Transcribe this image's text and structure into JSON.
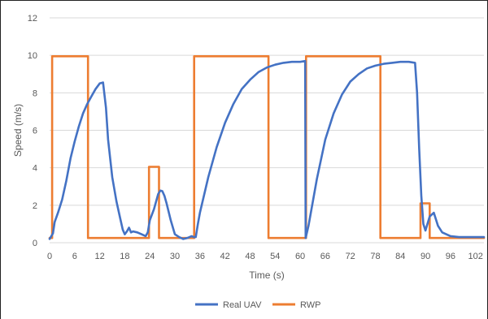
{
  "chart_data": {
    "type": "line",
    "title": "",
    "xlabel": "Time (s)",
    "ylabel": "Speed (m/s)",
    "xlim": [
      0,
      104
    ],
    "ylim": [
      0,
      12
    ],
    "x_ticks": [
      0,
      6,
      12,
      18,
      24,
      30,
      36,
      42,
      48,
      54,
      60,
      66,
      72,
      78,
      84,
      90,
      96,
      102
    ],
    "y_ticks": [
      0,
      2,
      4,
      6,
      8,
      10,
      12
    ],
    "grid": "horizontal",
    "legend": "bottom-center",
    "series": [
      {
        "name": "Real UAV",
        "color": "#4472C4",
        "x": [
          0,
          0.8,
          1.2,
          2,
          3,
          4,
          5,
          6,
          7,
          8,
          9,
          10,
          11,
          12,
          12.8,
          13.5,
          14,
          15,
          16,
          17,
          17.5,
          18,
          18.5,
          19,
          19.5,
          20,
          21,
          22,
          23,
          23.5,
          24,
          25,
          26,
          26.5,
          27,
          27.5,
          28,
          29,
          30,
          31,
          32,
          33,
          34,
          34.5,
          35,
          35.5,
          36,
          38,
          40,
          42,
          44,
          46,
          48,
          50,
          52,
          54,
          56,
          58,
          60,
          61.2,
          61.3,
          62,
          64,
          66,
          68,
          70,
          72,
          74,
          76,
          78,
          80,
          82,
          84,
          86,
          87.5,
          88,
          88.5,
          89,
          89.5,
          90,
          91,
          92,
          93,
          94,
          96,
          98,
          100,
          102,
          104
        ],
        "y": [
          0.2,
          0.5,
          1.1,
          1.6,
          2.3,
          3.3,
          4.5,
          5.4,
          6.2,
          6.9,
          7.4,
          7.8,
          8.2,
          8.5,
          8.55,
          7.2,
          5.5,
          3.5,
          2.2,
          1.2,
          0.7,
          0.45,
          0.6,
          0.8,
          0.55,
          0.6,
          0.55,
          0.45,
          0.35,
          0.55,
          1.2,
          1.8,
          2.6,
          2.78,
          2.75,
          2.5,
          2.1,
          1.2,
          0.45,
          0.3,
          0.2,
          0.25,
          0.35,
          0.3,
          0.3,
          1.0,
          1.6,
          3.5,
          5.1,
          6.4,
          7.4,
          8.2,
          8.7,
          9.1,
          9.35,
          9.5,
          9.6,
          9.65,
          9.65,
          9.7,
          0.25,
          0.9,
          3.4,
          5.5,
          6.9,
          7.9,
          8.6,
          9.0,
          9.3,
          9.45,
          9.55,
          9.6,
          9.65,
          9.65,
          9.6,
          8.0,
          5.0,
          2.5,
          1.0,
          0.65,
          1.4,
          1.6,
          0.9,
          0.55,
          0.35,
          0.3,
          0.3,
          0.3,
          0.3
        ]
      },
      {
        "name": "RWP",
        "color": "#ED7D31",
        "x": [
          0,
          0.6,
          0.6,
          9.2,
          9.2,
          23.8,
          23.8,
          26.2,
          26.2,
          34.6,
          34.6,
          52.4,
          52.4,
          61.4,
          61.4,
          79.2,
          79.2,
          88.8,
          88.8,
          91,
          91,
          104
        ],
        "y": [
          0.25,
          0.25,
          9.95,
          9.95,
          0.25,
          0.25,
          4.05,
          4.05,
          0.25,
          0.25,
          9.95,
          9.95,
          0.25,
          0.25,
          9.95,
          9.95,
          0.25,
          0.25,
          2.1,
          2.1,
          0.25,
          0.25
        ]
      }
    ]
  }
}
